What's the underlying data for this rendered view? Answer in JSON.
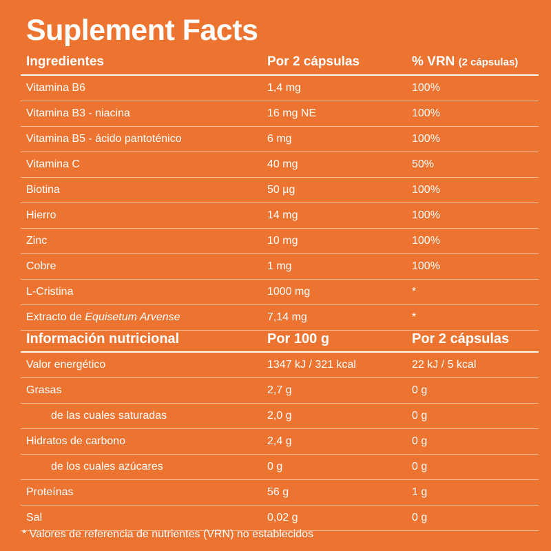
{
  "title": "Suplement Facts",
  "ingredients": {
    "headers": {
      "name": "Ingredientes",
      "amount": "Por 2 cápsulas",
      "vrn": "% VRN",
      "vrn_sub": "(2 cápsulas)"
    },
    "rows": [
      {
        "name": "Vitamina B6",
        "amount": "1,4 mg",
        "vrn": "100%"
      },
      {
        "name": "Vitamina B3 - niacina",
        "amount": "16 mg NE",
        "vrn": "100%"
      },
      {
        "name": "Vitamina B5 - ácido pantoténico",
        "amount": "6 mg",
        "vrn": "100%"
      },
      {
        "name": "Vitamina C",
        "amount": "40 mg",
        "vrn": "50%"
      },
      {
        "name": "Biotina",
        "amount": "50 µg",
        "vrn": "100%"
      },
      {
        "name": "Hierro",
        "amount": "14 mg",
        "vrn": "100%"
      },
      {
        "name": "Zinc",
        "amount": "10 mg",
        "vrn": "100%"
      },
      {
        "name": "Cobre",
        "amount": "1 mg",
        "vrn": "100%"
      },
      {
        "name": "L-Cristina",
        "amount": "1000 mg",
        "vrn": "*"
      }
    ],
    "last_row": {
      "name_prefix": "Extracto de ",
      "name_italic": "Equisetum Arvense",
      "amount": "7,14 mg",
      "vrn": "*"
    }
  },
  "nutrition": {
    "headers": {
      "name": "Información nutricional",
      "per100": "Por 100 g",
      "per2": "Por 2 cápsulas"
    },
    "rows": [
      {
        "name": "Valor energético",
        "per100": "1347 kJ / 321 kcal",
        "per2": "22 kJ / 5 kcal"
      },
      {
        "name": "Grasas",
        "per100": "2,7 g",
        "per2": "0 g"
      },
      {
        "name": "de las cuales saturadas",
        "per100": "2,0 g",
        "per2": "0 g"
      },
      {
        "name": "Hidratos de carbono",
        "per100": "2,4 g",
        "per2": "0 g"
      },
      {
        "name": "de los cuales azúcares",
        "per100": "0 g",
        "per2": "0 g"
      },
      {
        "name": "Proteínas",
        "per100": "56 g",
        "per2": "1 g"
      },
      {
        "name": "Sal",
        "per100": "0,02 g",
        "per2": "0 g"
      }
    ]
  },
  "footnote": "* Valores de referencia de nutrientes (VRN) no establecidos",
  "colors": {
    "background": "#ed7430",
    "text": "#ffffff"
  }
}
